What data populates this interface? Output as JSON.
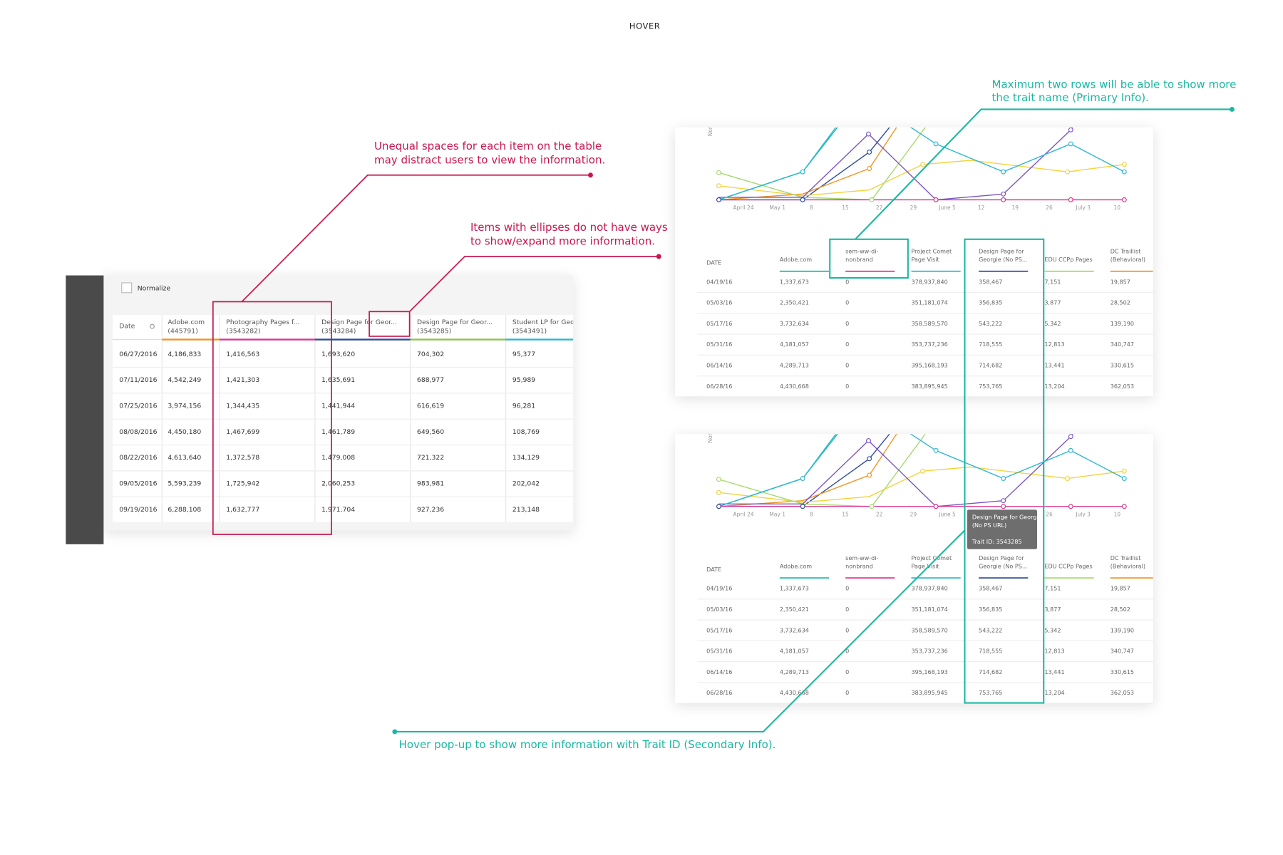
{
  "header": {
    "title": "HOVER"
  },
  "annotations": [
    {
      "lines": [
        "Unequal spaces for each item on the table",
        "may distract users to view the information."
      ]
    },
    {
      "lines": [
        "Items with ellipses do not have ways",
        "to show/expand more information."
      ]
    },
    {
      "lines": [
        "Maximum two rows will be able to show more",
        "the trait name (Primary Info)."
      ]
    },
    {
      "lines": [
        "Hover pop-up to show more information with Trait ID (Secondary Info)."
      ]
    }
  ],
  "left_panel": {
    "normalize_label": "Normalize",
    "table": {
      "columns": [
        [
          "Date"
        ],
        [
          "Adobe.com",
          "(445791)"
        ],
        [
          "Photography Pages f...",
          "(3543282)"
        ],
        [
          "Design Page for Geor...",
          "(3543284)"
        ],
        [
          "Design Page for Geor...",
          "(3543285)"
        ],
        [
          "Student LP for Geo",
          "(3543491)"
        ]
      ],
      "rows": [
        [
          "06/27/2016",
          "4,186,833",
          "1,416,563",
          "1,693,620",
          "704,302",
          "95,377"
        ],
        [
          "07/11/2016",
          "4,542,249",
          "1,421,303",
          "1,635,691",
          "688,977",
          "95,989"
        ],
        [
          "07/25/2016",
          "3,974,156",
          "1,344,435",
          "1,441,944",
          "616,619",
          "96,281"
        ],
        [
          "08/08/2016",
          "4,450,180",
          "1,467,699",
          "1,461,789",
          "649,560",
          "108,769"
        ],
        [
          "08/22/2016",
          "4,613,640",
          "1,372,578",
          "1,479,008",
          "721,322",
          "134,129"
        ],
        [
          "09/05/2016",
          "5,593,239",
          "1,725,942",
          "2,060,253",
          "983,981",
          "202,042"
        ],
        [
          "09/19/2016",
          "6,288,108",
          "1,632,777",
          "1,971,704",
          "927,236",
          "213,148"
        ]
      ]
    }
  },
  "right_panel": {
    "chart": {
      "y_label": "Nor",
      "x_labels": [
        "April 24",
        "May 1",
        "8",
        "15",
        "22",
        "29",
        "June 5",
        "12",
        "19",
        "26",
        "July 3",
        "10"
      ]
    },
    "table": {
      "columns": [
        [
          "DATE"
        ],
        [
          "Adobe.com"
        ],
        [
          "sem-ww-di-",
          "nonbrand"
        ],
        [
          "Project Comet",
          "Page Visit"
        ],
        [
          "Design Page for",
          "Georgie (No PS..."
        ],
        [
          "EDU CCPp Pages"
        ],
        [
          "DC Traillist",
          "(Behavioral)"
        ]
      ],
      "rows": [
        [
          "04/19/16",
          "1,337,673",
          "0",
          "378,937,840",
          "358,467",
          "7,151",
          "19,857"
        ],
        [
          "05/03/16",
          "2,350,421",
          "0",
          "351,181,074",
          "356,835",
          "3,877",
          "28,502"
        ],
        [
          "05/17/16",
          "3,732,634",
          "0",
          "358,589,570",
          "543,222",
          "5,342",
          "139,190"
        ],
        [
          "05/31/16",
          "4,181,057",
          "0",
          "353,737,236",
          "718,555",
          "12,813",
          "340,747"
        ],
        [
          "06/14/16",
          "4,289,713",
          "0",
          "395,168,193",
          "714,682",
          "13,441",
          "330,615"
        ],
        [
          "06/28/16",
          "4,430,668",
          "0",
          "383,895,945",
          "753,765",
          "13,204",
          "362,053"
        ]
      ]
    },
    "tooltip": {
      "lines": [
        "Design Page for Georgie",
        "(No PS URL)"
      ],
      "trait_id": "Trait ID: 3543285"
    }
  }
}
